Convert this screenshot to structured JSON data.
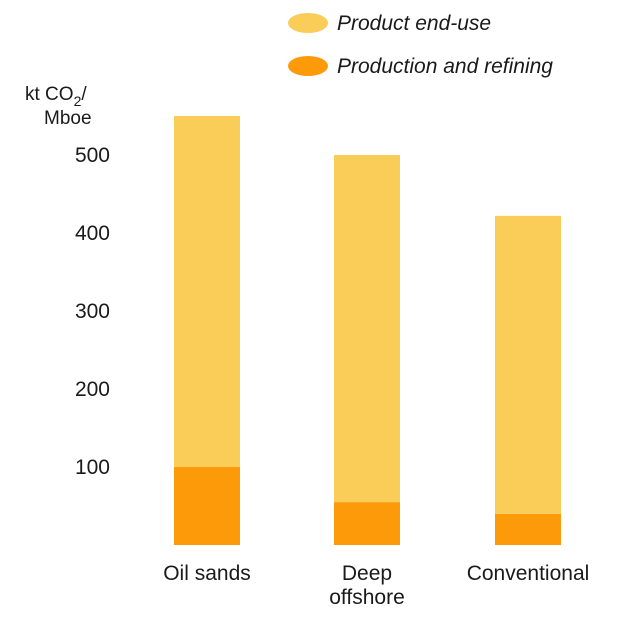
{
  "chart_data": {
    "type": "bar",
    "stacked": true,
    "categories": [
      [
        "Oil sands"
      ],
      [
        "Deep",
        "offshore"
      ],
      [
        "Conventional"
      ]
    ],
    "series": [
      {
        "name": "Production and refining",
        "values": [
          100,
          55,
          40
        ],
        "color": "#FC9A09"
      },
      {
        "name": "Product end-use",
        "values": [
          450,
          445,
          382
        ],
        "color": "#F9CD57"
      }
    ],
    "legend_order": [
      1,
      0
    ],
    "legend_position": "top-right",
    "ylabel_main": "kt CO",
    "ylabel_sub": "2",
    "ylabel_suffix": "/",
    "ylabel_line2": "Mboe",
    "yticks": [
      100,
      200,
      300,
      400,
      500
    ],
    "ylim": [
      0,
      550
    ],
    "grid": false,
    "title": ""
  }
}
